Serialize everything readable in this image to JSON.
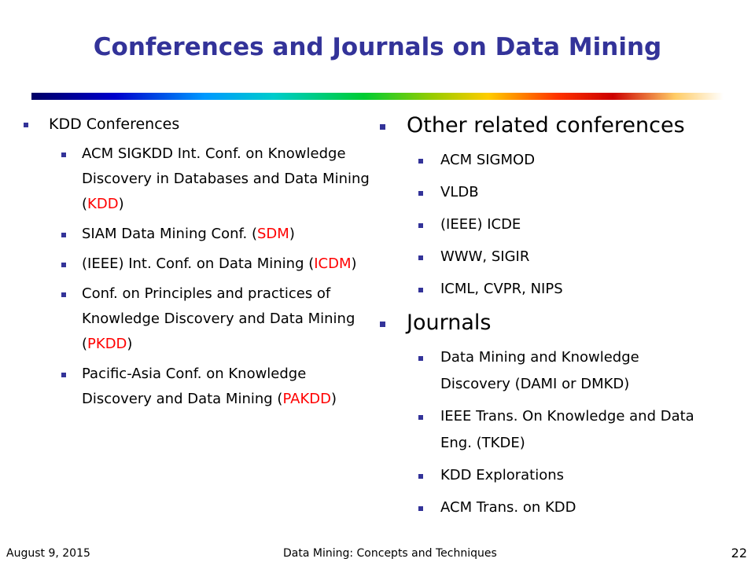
{
  "title": "Conferences and Journals on Data Mining",
  "left": {
    "heading": "KDD Conferences",
    "items": [
      {
        "prefix": "ACM SIGKDD Int. Conf. on Knowledge Discovery in Databases and Data Mining (",
        "highlight": "KDD",
        "suffix": ")"
      },
      {
        "prefix": "SIAM Data Mining Conf. (",
        "highlight": "SDM",
        "suffix": ")"
      },
      {
        "prefix": "(IEEE) Int. Conf. on Data Mining (",
        "highlight": "ICDM",
        "suffix": ")"
      },
      {
        "prefix": "Conf. on Principles and practices of Knowledge Discovery and Data Mining (",
        "highlight": "PKDD",
        "suffix": ")"
      },
      {
        "prefix": "Pacific-Asia Conf. on Knowledge Discovery and Data Mining (",
        "highlight": "PAKDD",
        "suffix": ")"
      }
    ]
  },
  "right": [
    {
      "heading": "Other related conferences",
      "items": [
        "ACM SIGMOD",
        "VLDB",
        "(IEEE) ICDE",
        "WWW, SIGIR",
        "ICML, CVPR, NIPS"
      ]
    },
    {
      "heading": "Journals",
      "items": [
        "Data Mining and Knowledge Discovery (DAMI or DMKD)",
        "IEEE Trans. On Knowledge and Data Eng. (TKDE)",
        "KDD Explorations",
        "ACM Trans. on KDD"
      ]
    }
  ],
  "footer": {
    "date": "August 9, 2015",
    "center": "Data Mining: Concepts and Techniques",
    "page": "22"
  }
}
